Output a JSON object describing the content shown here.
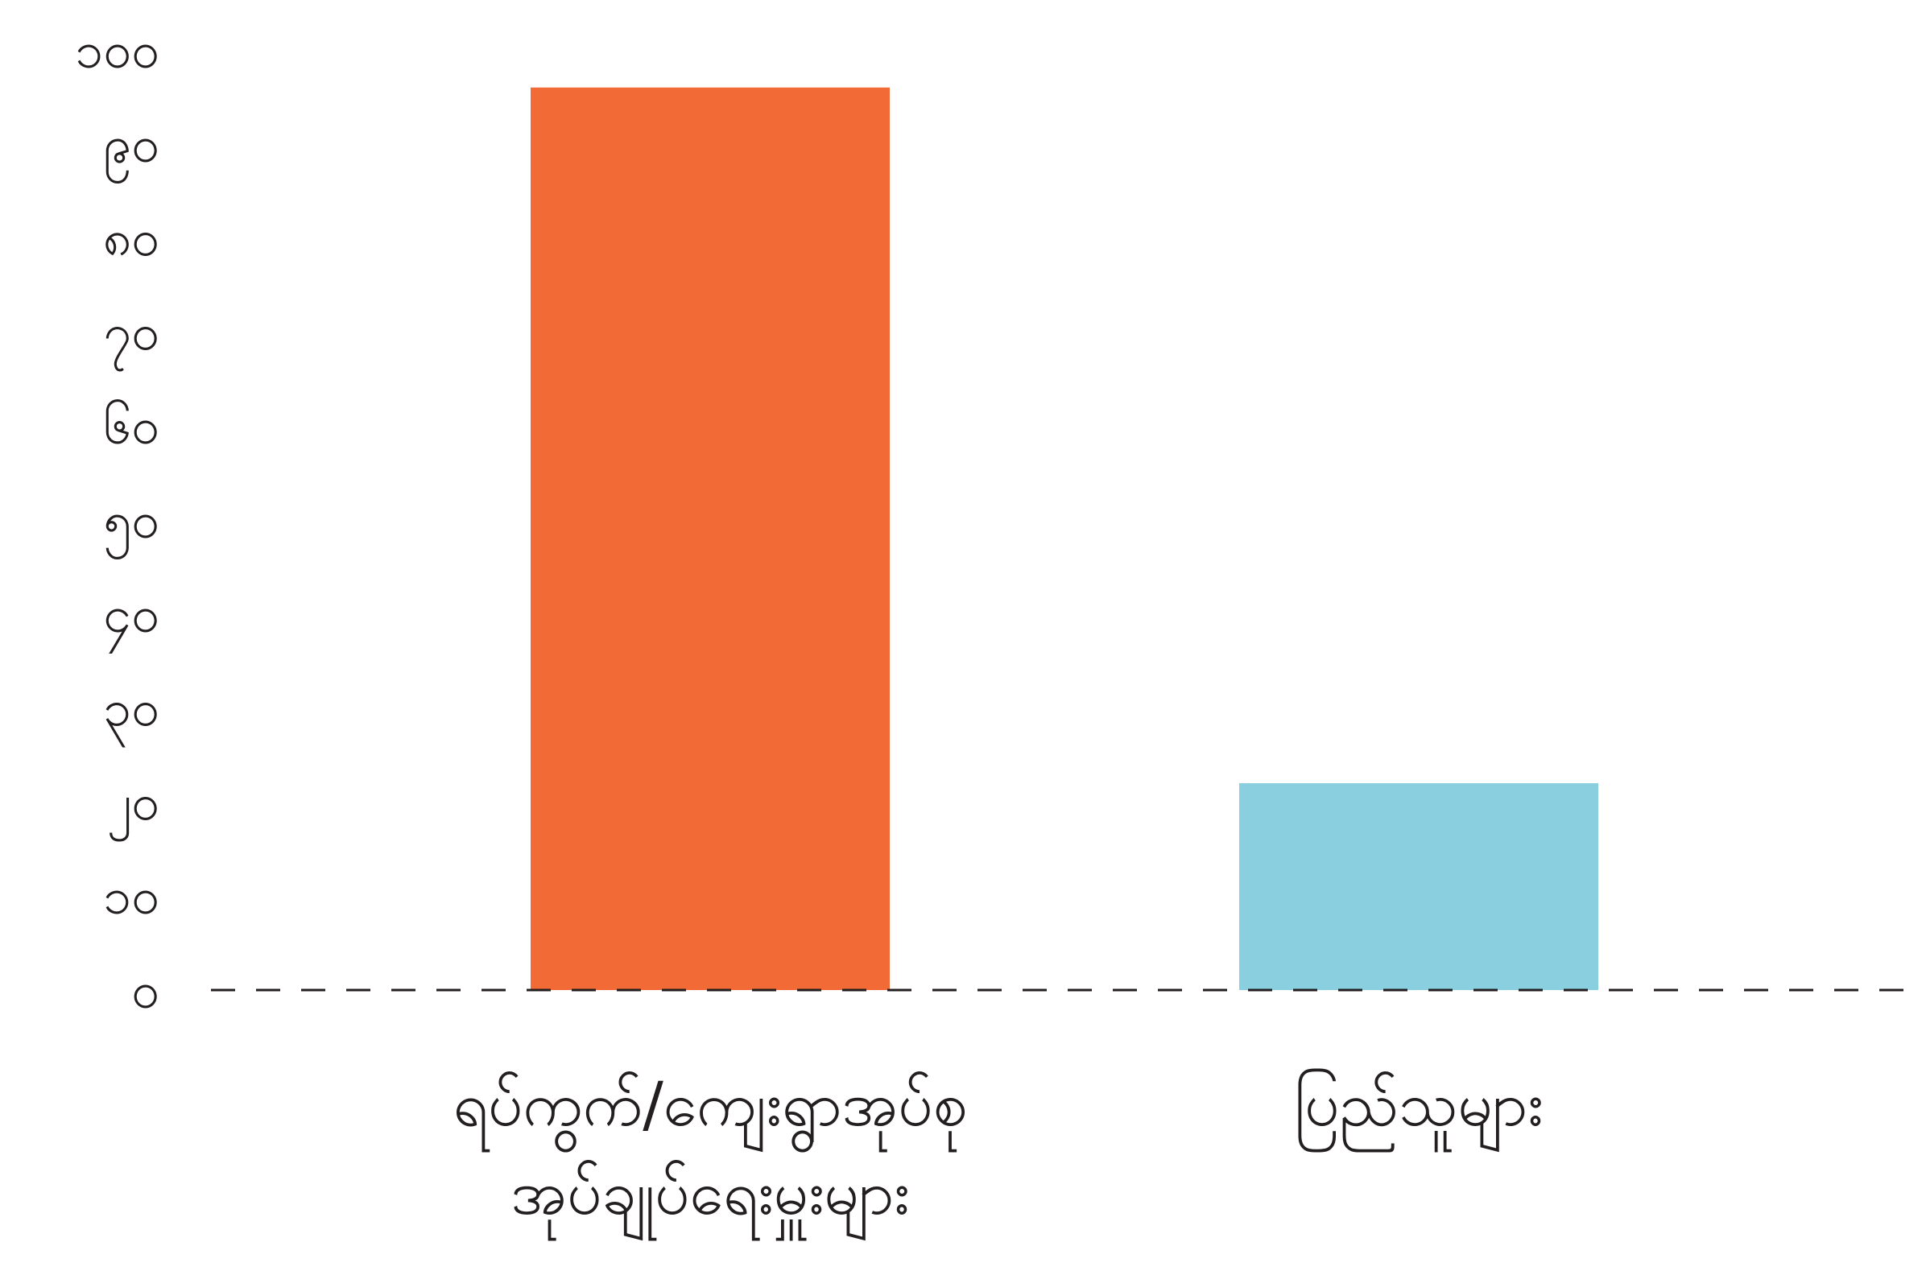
{
  "chart_data": {
    "type": "bar",
    "categories": [
      [
        "ရပ်ကွက်/ကျေးရွာအုပ်စု",
        "အုပ်ချုပ်ရေးမှူးများ"
      ],
      [
        "ပြည်သူများ"
      ]
    ],
    "values": [
      96,
      22
    ],
    "colors": [
      "#f26a35",
      "#8acfdf"
    ],
    "ylim": [
      0,
      100
    ],
    "yticks": [
      0,
      10,
      20,
      30,
      40,
      50,
      60,
      70,
      80,
      90,
      100
    ],
    "ytick_labels": [
      "၀",
      "၁၀",
      "၂၀",
      "၃၀",
      "၄၀",
      "၅၀",
      "၆၀",
      "၇၀",
      "၈၀",
      "၉၀",
      "၁၀၀"
    ],
    "baseline_style": "dashed",
    "grid": false,
    "title": "",
    "xlabel": "",
    "ylabel": ""
  }
}
